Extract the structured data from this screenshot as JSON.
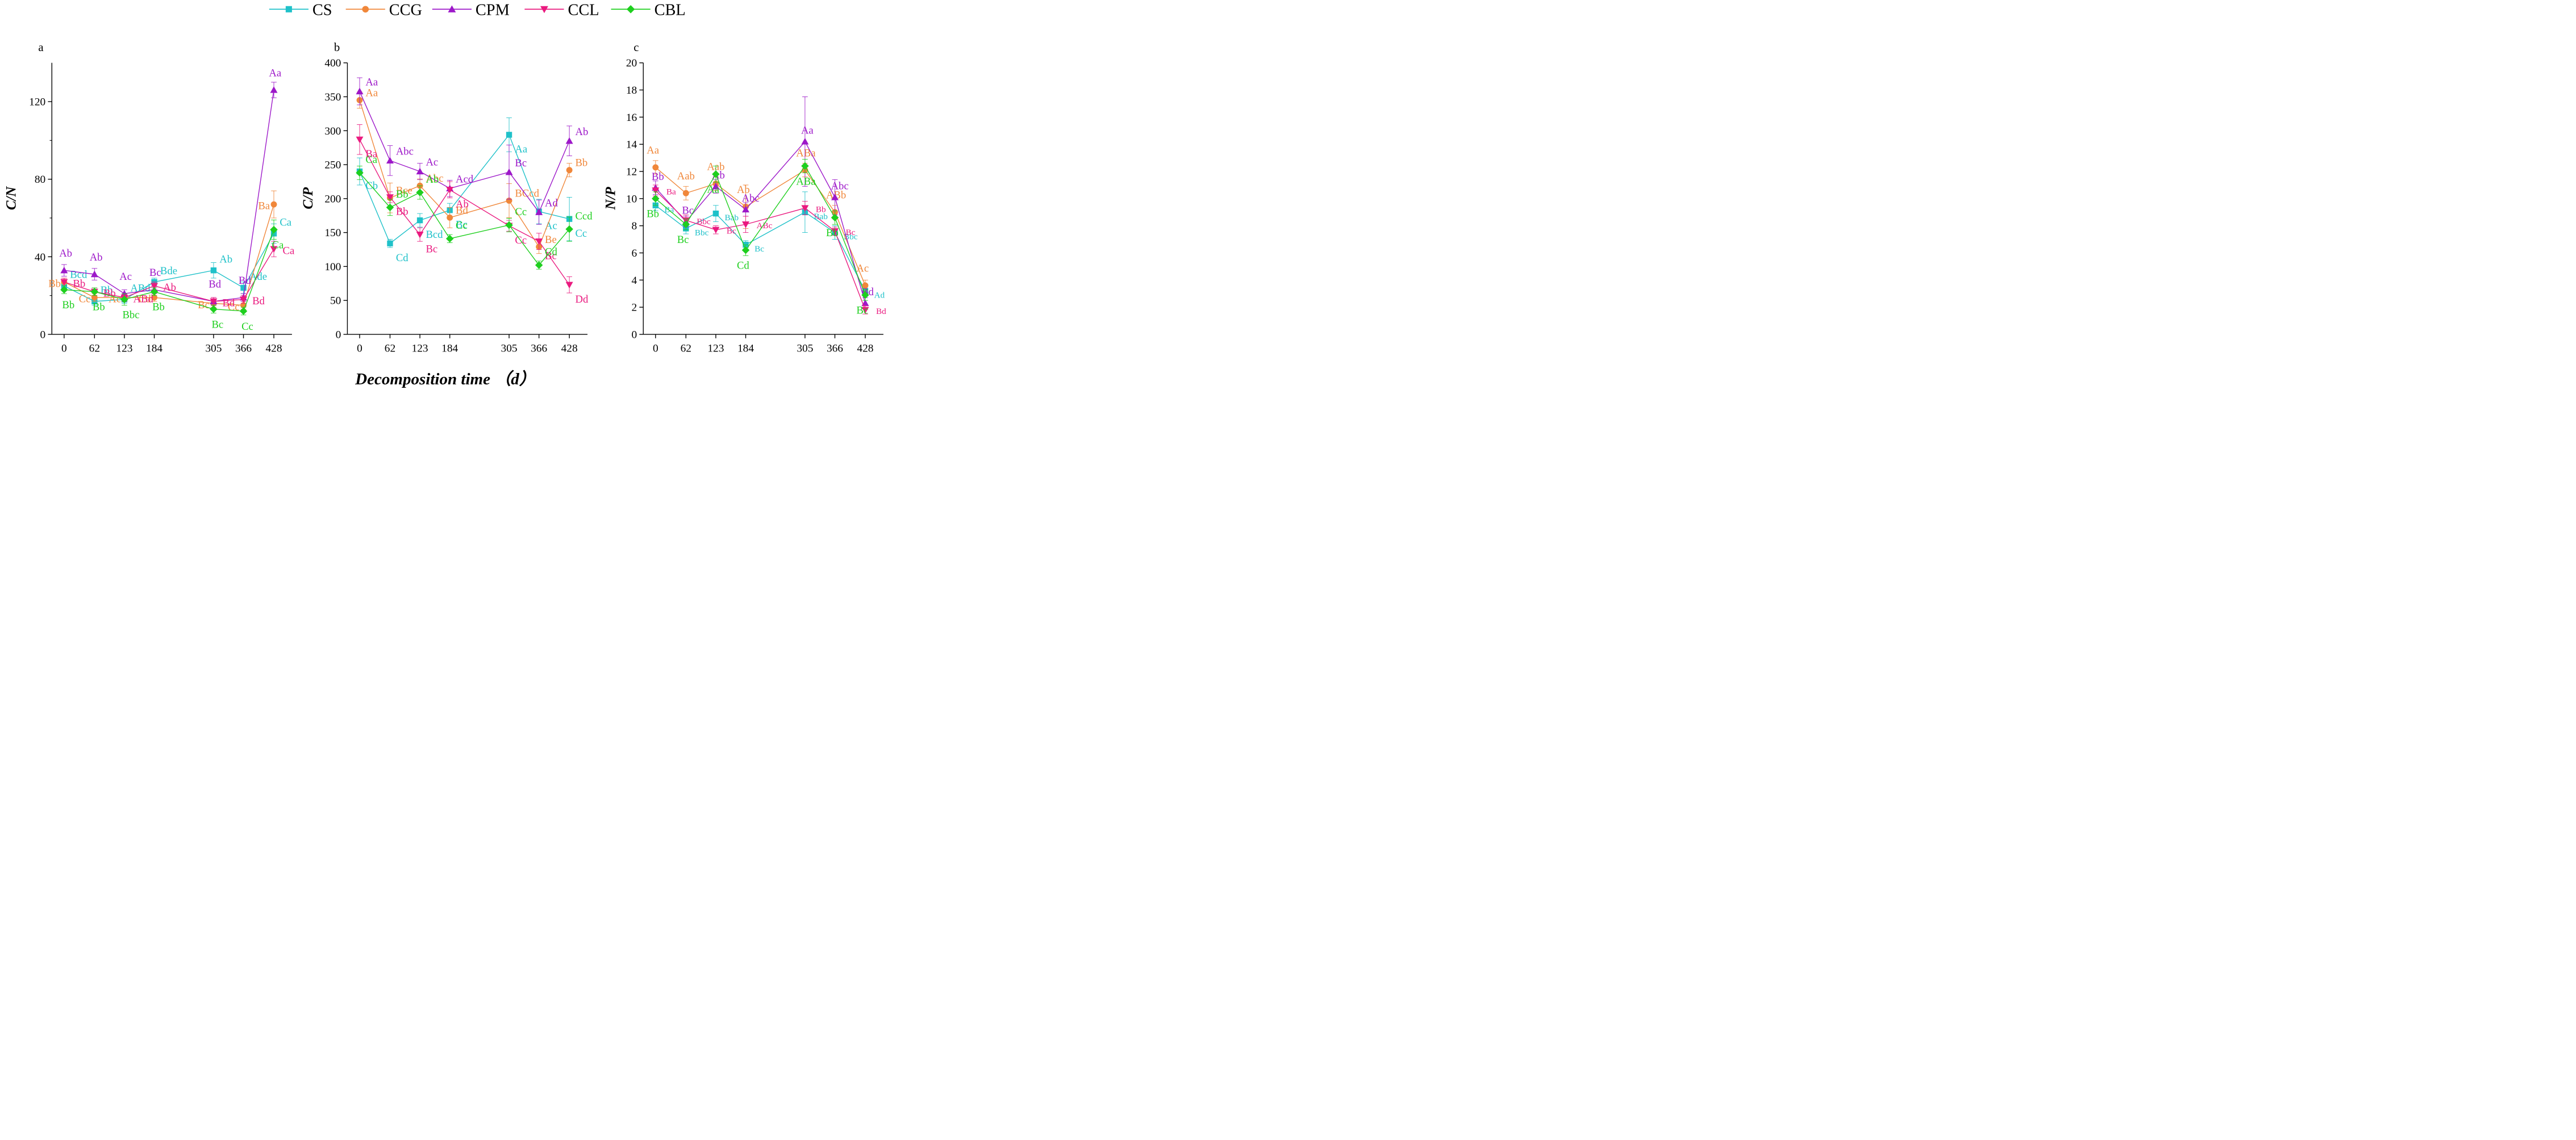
{
  "figure": {
    "xlabel": "Decomposition time （d）"
  },
  "series_styles": [
    {
      "name": "CS",
      "color": "#1fc1c9",
      "marker": "square"
    },
    {
      "name": "CCG",
      "color": "#f0873a",
      "marker": "circle"
    },
    {
      "name": "CPM",
      "color": "#9d18c9",
      "marker": "triangle-up"
    },
    {
      "name": "CCL",
      "color": "#ea1a7f",
      "marker": "triangle-down"
    },
    {
      "name": "CBL",
      "color": "#1ecf1e",
      "marker": "diamond"
    }
  ],
  "chart_data": [
    {
      "type": "line",
      "panel": "a",
      "xlabel": "Decomposition time （d）",
      "ylabel": "C/N",
      "x": [
        0,
        62,
        123,
        184,
        305,
        366,
        428
      ],
      "xticks": [
        "0",
        "62",
        "123",
        "184",
        "305",
        "366",
        "428"
      ],
      "xlim": [
        -25,
        465
      ],
      "ylim": [
        0,
        140
      ],
      "yticks": [
        0,
        40,
        80,
        120
      ],
      "series": [
        {
          "name": "CS",
          "values": [
            25,
            17,
            18,
            27,
            33,
            24,
            52
          ],
          "errors": [
            2,
            2,
            2,
            2,
            4,
            3,
            5
          ],
          "labels": [
            "Bcd",
            "Bb",
            "ABd",
            "Bde",
            "Ab",
            "Ade",
            "Ca"
          ]
        },
        {
          "name": "CCG",
          "values": [
            27,
            19,
            19,
            19,
            16,
            15,
            67
          ],
          "errors": [
            2,
            2,
            2,
            2,
            2,
            2,
            7
          ],
          "labels": [
            "Bb",
            "Cc",
            "Ac",
            "Cd",
            "Bc",
            "Cc",
            "Ba"
          ]
        },
        {
          "name": "CPM",
          "values": [
            33,
            31,
            21,
            23,
            17,
            19,
            126
          ],
          "errors": [
            3,
            3,
            2,
            2,
            2,
            2,
            4
          ],
          "labels": [
            "Ab",
            "Ab",
            "Ac",
            "Bc",
            "Bd",
            "Bd",
            "Aa"
          ]
        },
        {
          "name": "CCL",
          "values": [
            27,
            22,
            19,
            25,
            17,
            18,
            44
          ],
          "errors": [
            2,
            2,
            2,
            2,
            2,
            2,
            4
          ],
          "labels": [
            "Bb",
            "Bb",
            "ABd",
            "Ab",
            "Bd",
            "Bd",
            "Ca"
          ]
        },
        {
          "name": "CBL",
          "values": [
            23,
            22,
            18,
            22,
            13,
            12,
            54
          ],
          "errors": [
            2,
            2,
            3,
            2,
            2,
            2,
            5
          ],
          "labels": [
            "Bb",
            "Bb",
            "Bbc",
            "Bb",
            "Bc",
            "Cc",
            "Ca"
          ]
        }
      ]
    },
    {
      "type": "line",
      "panel": "b",
      "xlabel": "Decomposition time （d）",
      "ylabel": "C/P",
      "x": [
        0,
        62,
        123,
        184,
        305,
        366,
        428
      ],
      "xticks": [
        "0",
        "62",
        "123",
        "184",
        "305",
        "366",
        "428"
      ],
      "xlim": [
        -25,
        465
      ],
      "ylim": [
        0,
        400
      ],
      "yticks": [
        0,
        50,
        100,
        150,
        200,
        250,
        300,
        350,
        400
      ],
      "series": [
        {
          "name": "CS",
          "values": [
            240,
            134,
            168,
            183,
            294,
            181,
            170
          ],
          "errors": [
            20,
            6,
            10,
            10,
            25,
            18,
            32
          ],
          "labels": [
            "Cb",
            "Cd",
            "Bcd",
            "Bc",
            "Aa",
            "Ac",
            "Cc"
          ]
        },
        {
          "name": "CCG",
          "values": [
            345,
            201,
            219,
            172,
            197,
            129,
            242
          ],
          "errors": [
            12,
            22,
            10,
            15,
            25,
            10,
            10
          ],
          "labels": [
            "Aa",
            "Bce",
            "Abc",
            "Bd",
            "BCcd",
            "Be",
            "Bb"
          ]
        },
        {
          "name": "CPM",
          "values": [
            358,
            256,
            240,
            215,
            239,
            180,
            285
          ],
          "errors": [
            20,
            22,
            12,
            12,
            40,
            18,
            22
          ],
          "labels": [
            "Aa",
            "Abc",
            "Ac",
            "Acd",
            "Bc",
            "Ad",
            "Ab"
          ]
        },
        {
          "name": "CCL",
          "values": [
            287,
            202,
            147,
            213,
            160,
            137,
            73
          ],
          "errors": [
            22,
            8,
            10,
            12,
            8,
            12,
            12
          ],
          "labels": [
            "Ba",
            "Bb",
            "Bc",
            "Ab",
            "Cc",
            "Bc",
            "Dd"
          ]
        },
        {
          "name": "CBL",
          "values": [
            238,
            187,
            209,
            141,
            161,
            102,
            155
          ],
          "errors": [
            10,
            12,
            10,
            6,
            10,
            6,
            18
          ],
          "labels": [
            "Ca",
            "Bb",
            "Ab",
            "Cc",
            "Cc",
            "Cd",
            "Ccd"
          ]
        }
      ]
    },
    {
      "type": "line",
      "panel": "c",
      "xlabel": "Decomposition time （d）",
      "ylabel": "N/P",
      "x": [
        0,
        62,
        123,
        184,
        305,
        366,
        428
      ],
      "xticks": [
        "0",
        "62",
        "123",
        "184",
        "305",
        "366",
        "428"
      ],
      "xlim": [
        -25,
        465
      ],
      "ylim": [
        0,
        20
      ],
      "yticks": [
        0,
        2,
        4,
        6,
        8,
        10,
        12,
        14,
        16,
        18,
        20
      ],
      "series": [
        {
          "name": "CS",
          "values": [
            9.5,
            7.8,
            8.9,
            6.6,
            9.0,
            7.5,
            3.2
          ],
          "errors": [
            0.4,
            0.4,
            0.6,
            0.3,
            1.5,
            0.5,
            0.4
          ],
          "labels": [
            "Ba",
            "Bbc",
            "Bab",
            "Bc",
            "Bab",
            "Bbc",
            "Ad"
          ]
        },
        {
          "name": "CCG",
          "values": [
            12.3,
            10.4,
            11.1,
            9.4,
            12.1,
            9.0,
            3.6
          ],
          "errors": [
            0.5,
            0.5,
            0.5,
            1.6,
            0.5,
            0.5,
            0.4
          ],
          "labels": [
            "Aa",
            "Aab",
            "Aab",
            "Ab",
            "ABa",
            "ABb",
            "Ac"
          ]
        },
        {
          "name": "CPM",
          "values": [
            10.8,
            8.3,
            10.9,
            9.2,
            14.2,
            10.1,
            2.3
          ],
          "errors": [
            0.5,
            0.4,
            0.5,
            0.5,
            3.3,
            1.3,
            0.4
          ],
          "labels": [
            "Bb",
            "Bc",
            "Ab",
            "Abc",
            "Aa",
            "Abc",
            "Bd"
          ]
        },
        {
          "name": "CCL",
          "values": [
            10.6,
            8.4,
            7.7,
            8.1,
            9.3,
            7.6,
            1.8
          ],
          "errors": [
            0.4,
            0.4,
            0.3,
            0.6,
            0.5,
            0.3,
            0.3
          ],
          "labels": [
            "Ba",
            "Bbc",
            "Bc",
            "ABc",
            "Bb",
            "Bc",
            "Bd"
          ]
        },
        {
          "name": "CBL",
          "values": [
            10.0,
            8.1,
            11.8,
            6.2,
            12.4,
            8.6,
            2.9
          ],
          "errors": [
            0.5,
            0.4,
            0.6,
            0.4,
            0.5,
            0.5,
            0.4
          ],
          "labels": [
            "Bb",
            "Bc",
            "Aa",
            "Cd",
            "ABa",
            "Bb",
            "Bc"
          ]
        }
      ]
    }
  ]
}
